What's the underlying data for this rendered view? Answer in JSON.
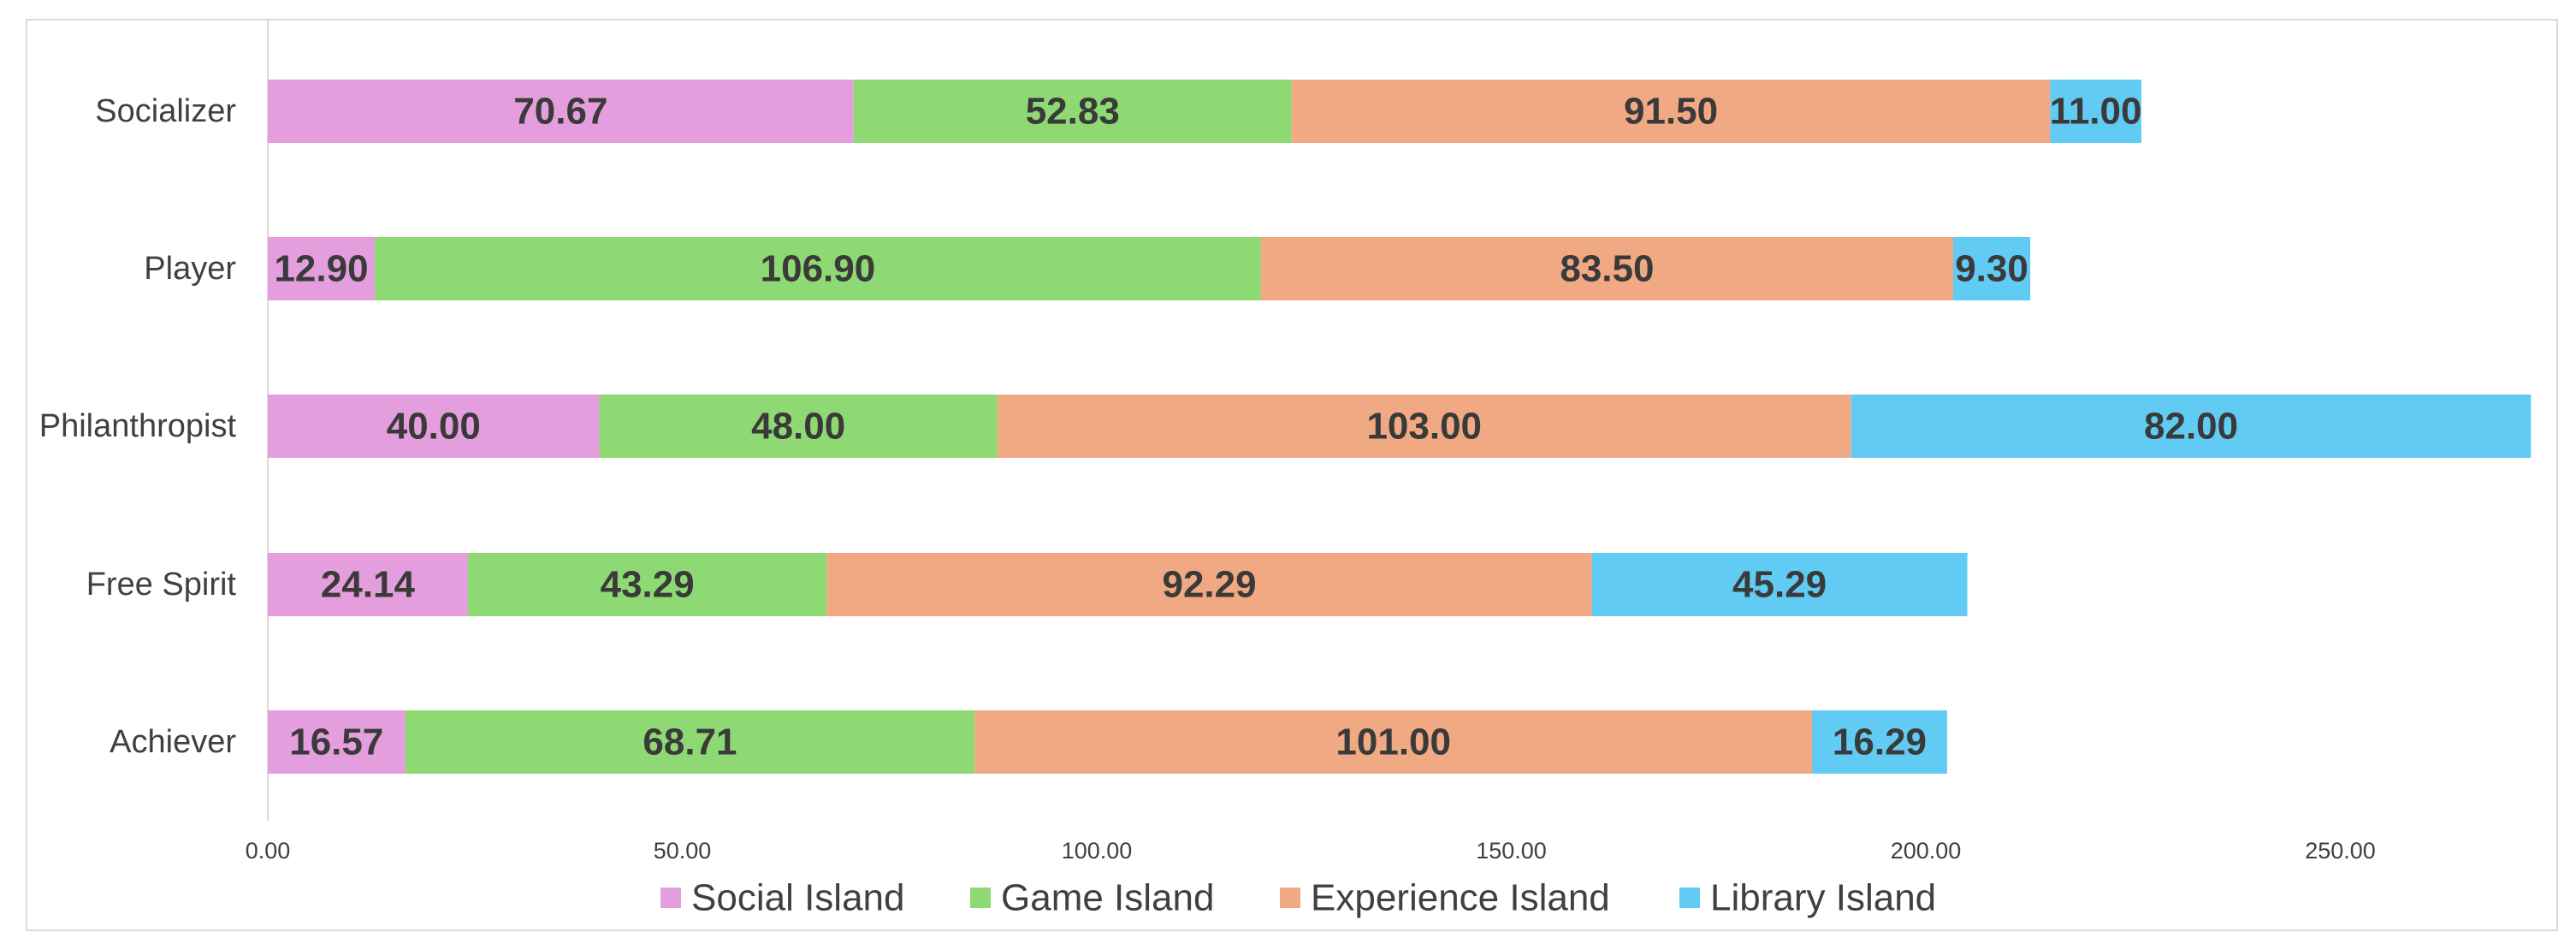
{
  "chart_data": {
    "type": "bar",
    "orientation": "horizontal",
    "stacked": true,
    "categories": [
      "Socializer",
      "Player",
      "Philanthropist",
      "Free Spirit",
      "Achiever"
    ],
    "series": [
      {
        "name": "Social Island",
        "color": "#e49edd",
        "values": [
          70.67,
          12.9,
          40.0,
          24.14,
          16.57
        ]
      },
      {
        "name": "Game Island",
        "color": "#8ed973",
        "values": [
          52.83,
          106.9,
          48.0,
          43.29,
          68.71
        ]
      },
      {
        "name": "Experience Island",
        "color": "#f1a983",
        "values": [
          91.5,
          83.5,
          103.0,
          92.29,
          101.0
        ]
      },
      {
        "name": "Library Island",
        "color": "#61cbf3",
        "values": [
          11.0,
          9.3,
          82.0,
          45.29,
          16.29
        ]
      }
    ],
    "data_labels": [
      [
        "70.67",
        "12.90",
        "40.00",
        "24.14",
        "16.57"
      ],
      [
        "52.83",
        "106.90",
        "48.00",
        "43.29",
        "68.71"
      ],
      [
        "91.50",
        "83.50",
        "103.00",
        "92.29",
        "101.00"
      ],
      [
        "11.00",
        "9.30",
        "82.00",
        "45.29",
        "16.29"
      ]
    ],
    "x_ticks": [
      "0.00",
      "50.00",
      "100.00",
      "150.00",
      "200.00",
      "250.00"
    ],
    "xlim": [
      0,
      270
    ],
    "grid": false,
    "legend_position": "bottom"
  }
}
